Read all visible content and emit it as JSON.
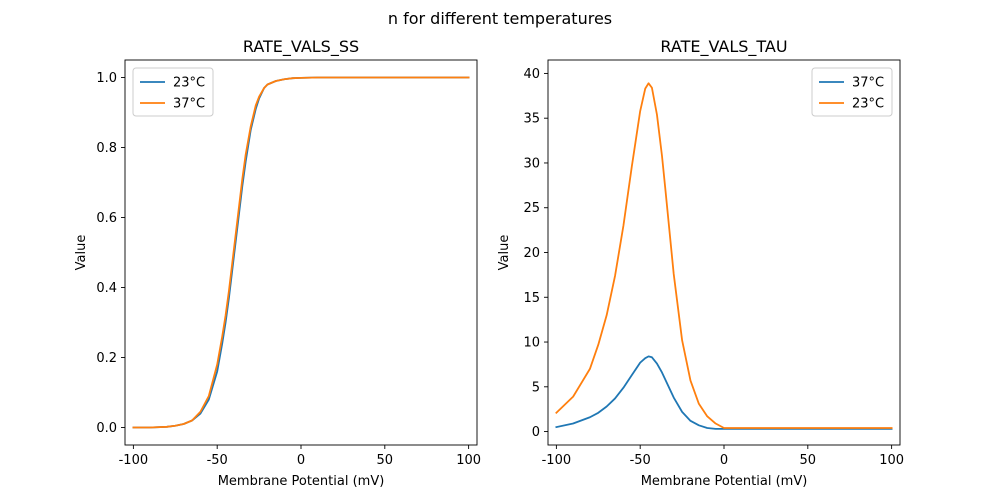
{
  "figure": {
    "suptitle": "n for different temperatures"
  },
  "colors": {
    "c0": "#1f77b4",
    "c1": "#ff7f0e"
  },
  "chart_data": [
    {
      "type": "line",
      "title": "RATE_VALS_SS",
      "xlabel": "Membrane Potential (mV)",
      "ylabel": "Value",
      "xlim": [
        -105,
        105
      ],
      "ylim": [
        -0.05,
        1.05
      ],
      "xticks": [
        -100,
        -50,
        0,
        50,
        100
      ],
      "yticks": [
        0.0,
        0.2,
        0.4,
        0.6,
        0.8,
        1.0
      ],
      "ytick_labels": [
        "0.0",
        "0.2",
        "0.4",
        "0.6",
        "0.8",
        "1.0"
      ],
      "legend": "top-left",
      "series": [
        {
          "name": "23°C",
          "color": "#1f77b4",
          "x": [
            -100,
            -90,
            -80,
            -75,
            -70,
            -65,
            -60,
            -55,
            -50,
            -47,
            -45,
            -43,
            -40,
            -37,
            -35,
            -33,
            -30,
            -27,
            -25,
            -22,
            -20,
            -15,
            -10,
            -5,
            0,
            10,
            20,
            50,
            100
          ],
          "y": [
            0.0,
            0.0,
            0.002,
            0.005,
            0.01,
            0.02,
            0.04,
            0.08,
            0.16,
            0.24,
            0.3,
            0.37,
            0.49,
            0.61,
            0.69,
            0.76,
            0.85,
            0.91,
            0.94,
            0.97,
            0.98,
            0.99,
            0.995,
            0.998,
            0.999,
            1.0,
            1.0,
            1.0,
            1.0
          ]
        },
        {
          "name": "37°C",
          "color": "#ff7f0e",
          "x": [
            -100,
            -90,
            -80,
            -75,
            -70,
            -65,
            -60,
            -55,
            -50,
            -47,
            -45,
            -43,
            -40,
            -37,
            -35,
            -33,
            -30,
            -27,
            -25,
            -22,
            -20,
            -15,
            -10,
            -5,
            0,
            10,
            20,
            50,
            100
          ],
          "y": [
            0.0,
            0.0,
            0.002,
            0.005,
            0.01,
            0.02,
            0.045,
            0.09,
            0.18,
            0.26,
            0.32,
            0.39,
            0.51,
            0.63,
            0.71,
            0.78,
            0.86,
            0.92,
            0.945,
            0.97,
            0.98,
            0.99,
            0.995,
            0.998,
            0.999,
            1.0,
            1.0,
            1.0,
            1.0
          ]
        }
      ]
    },
    {
      "type": "line",
      "title": "RATE_VALS_TAU",
      "xlabel": "Membrane Potential (mV)",
      "ylabel": "Value",
      "xlim": [
        -105,
        105
      ],
      "ylim": [
        -1.5,
        41.5
      ],
      "xticks": [
        -100,
        -50,
        0,
        50,
        100
      ],
      "yticks": [
        0,
        5,
        10,
        15,
        20,
        25,
        30,
        35,
        40
      ],
      "ytick_labels": [
        "0",
        "5",
        "10",
        "15",
        "20",
        "25",
        "30",
        "35",
        "40"
      ],
      "legend": "top-right",
      "series": [
        {
          "name": "37°C",
          "color": "#1f77b4",
          "x": [
            -100,
            -90,
            -80,
            -75,
            -70,
            -65,
            -60,
            -55,
            -50,
            -47,
            -45,
            -43,
            -40,
            -37,
            -35,
            -30,
            -25,
            -20,
            -15,
            -10,
            -5,
            0,
            50,
            100
          ],
          "y": [
            0.5,
            0.9,
            1.6,
            2.1,
            2.8,
            3.7,
            4.9,
            6.3,
            7.7,
            8.2,
            8.4,
            8.3,
            7.6,
            6.6,
            5.8,
            3.8,
            2.2,
            1.2,
            0.7,
            0.4,
            0.3,
            0.3,
            0.3,
            0.3
          ]
        },
        {
          "name": "23°C",
          "color": "#ff7f0e",
          "x": [
            -100,
            -90,
            -80,
            -75,
            -70,
            -65,
            -60,
            -55,
            -50,
            -47,
            -45,
            -43,
            -40,
            -37,
            -35,
            -30,
            -25,
            -20,
            -15,
            -10,
            -5,
            0,
            50,
            100
          ],
          "y": [
            2.1,
            3.9,
            7.0,
            9.7,
            13.0,
            17.4,
            23.0,
            29.6,
            35.8,
            38.3,
            38.9,
            38.4,
            35.4,
            30.8,
            27.1,
            17.6,
            10.2,
            5.7,
            3.1,
            1.7,
            0.9,
            0.4,
            0.4,
            0.4
          ]
        }
      ]
    }
  ]
}
